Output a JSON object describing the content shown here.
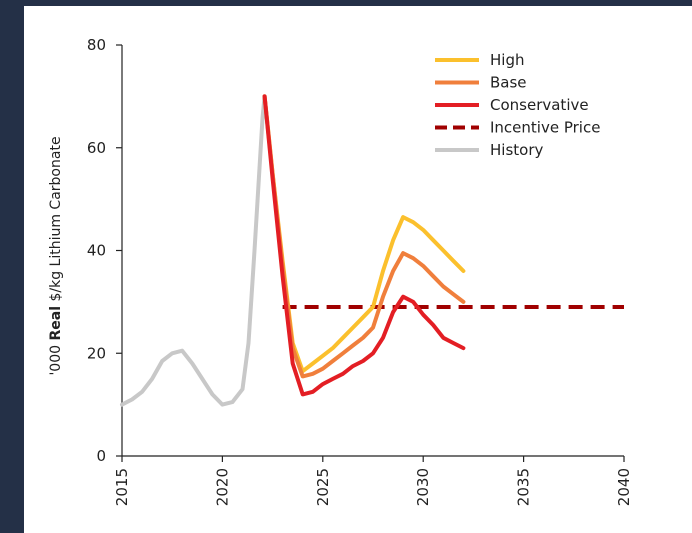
{
  "chart_data": {
    "type": "line",
    "ylabel_prefix": "'000 ",
    "ylabel_bold": "Real",
    "ylabel_suffix": " $/kg Lithium Carbonate",
    "xlim": [
      2015,
      2040
    ],
    "ylim": [
      0,
      80
    ],
    "xticks": [
      2015,
      2020,
      2025,
      2030,
      2035,
      2040
    ],
    "yticks": [
      0,
      20,
      40,
      60,
      80
    ],
    "grid": false,
    "legend_position": "top-right",
    "series": [
      {
        "name": "High",
        "color": "#FBC02D",
        "dash": false,
        "x": [
          2022.1,
          2022.5,
          2023.0,
          2023.5,
          2024.0,
          2024.5,
          2025.0,
          2025.5,
          2026.0,
          2026.5,
          2027.0,
          2027.5,
          2028.0,
          2028.5,
          2029.0,
          2029.5,
          2030.0,
          2030.5,
          2031.0,
          2031.5,
          2032.0
        ],
        "y": [
          70,
          55,
          38,
          22,
          16.5,
          18,
          19.5,
          21,
          23,
          25,
          27,
          29,
          36,
          42,
          46.5,
          45.5,
          44,
          42,
          40,
          38,
          36
        ]
      },
      {
        "name": "Base",
        "color": "#F07F3C",
        "dash": false,
        "x": [
          2022.1,
          2022.5,
          2023.0,
          2023.5,
          2024.0,
          2024.5,
          2025.0,
          2025.5,
          2026.0,
          2026.5,
          2027.0,
          2027.5,
          2028.0,
          2028.5,
          2029.0,
          2029.5,
          2030.0,
          2030.5,
          2031.0,
          2031.5,
          2032.0
        ],
        "y": [
          70,
          55,
          37,
          21,
          15.5,
          16,
          17,
          18.5,
          20,
          21.5,
          23,
          25,
          31,
          36,
          39.5,
          38.5,
          37,
          35,
          33,
          31.5,
          30
        ]
      },
      {
        "name": "Conservative",
        "color": "#E31E24",
        "dash": false,
        "x": [
          2022.1,
          2022.5,
          2023.0,
          2023.5,
          2024.0,
          2024.5,
          2025.0,
          2025.5,
          2026.0,
          2026.5,
          2027.0,
          2027.5,
          2028.0,
          2028.5,
          2029.0,
          2029.5,
          2030.0,
          2030.5,
          2031.0,
          2031.5,
          2032.0
        ],
        "y": [
          70,
          54,
          35,
          18,
          12,
          12.5,
          14,
          15,
          16,
          17.5,
          18.5,
          20,
          23,
          28,
          31,
          30,
          27.5,
          25.5,
          23,
          22,
          21
        ]
      },
      {
        "name": "Incentive Price",
        "color": "#A00000",
        "dash": true,
        "x": [
          2023,
          2040
        ],
        "y": [
          29,
          29
        ]
      },
      {
        "name": "History",
        "color": "#C8C8C8",
        "dash": false,
        "x": [
          2015.0,
          2015.5,
          2016.0,
          2016.5,
          2017.0,
          2017.5,
          2018.0,
          2018.5,
          2019.0,
          2019.5,
          2020.0,
          2020.5,
          2021.0,
          2021.3,
          2021.6,
          2022.0,
          2022.1
        ],
        "y": [
          10,
          11,
          12.5,
          15,
          18.5,
          20,
          20.5,
          18,
          15,
          12,
          10,
          10.5,
          13,
          22,
          40,
          66,
          70
        ]
      }
    ]
  }
}
